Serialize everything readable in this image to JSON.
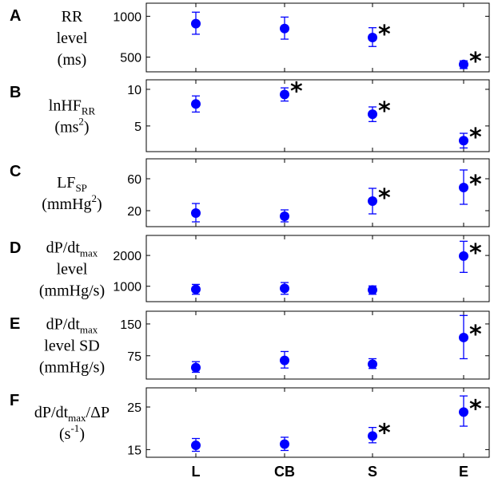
{
  "chart_data": [
    {
      "panel": "A",
      "type": "scatter",
      "ylabel_lines": [
        {
          "text": "RR",
          "sub": "",
          "sup": ""
        },
        {
          "text": "level",
          "sub": "",
          "sup": ""
        },
        {
          "text": "(ms)",
          "sub": "",
          "sup": ""
        }
      ],
      "categories": [
        "L",
        "CB",
        "S",
        "E"
      ],
      "values": [
        910,
        850,
        740,
        410
      ],
      "err_low": [
        780,
        720,
        630,
        360
      ],
      "err_high": [
        1050,
        990,
        860,
        455
      ],
      "significant": [
        false,
        false,
        true,
        true
      ],
      "ylim": [
        320,
        1160
      ],
      "yticks": [
        500,
        1000
      ],
      "ytick_labels": [
        "500",
        "1000"
      ]
    },
    {
      "panel": "B",
      "type": "scatter",
      "ylabel_lines": [
        {
          "text": "lnHF",
          "sub": "RR",
          "sup": ""
        },
        {
          "text": "(ms",
          "sub": "",
          "sup": "2",
          "after": ")"
        }
      ],
      "categories": [
        "L",
        "CB",
        "S",
        "E"
      ],
      "values": [
        8.0,
        9.3,
        6.6,
        3.0
      ],
      "err_low": [
        6.9,
        8.4,
        5.6,
        2.0
      ],
      "err_high": [
        9.1,
        10.2,
        7.6,
        4.0
      ],
      "significant": [
        false,
        true,
        true,
        true
      ],
      "ylim": [
        1.5,
        11.3
      ],
      "yticks": [
        5,
        10
      ],
      "ytick_labels": [
        "5",
        "10"
      ]
    },
    {
      "panel": "C",
      "type": "scatter",
      "ylabel_lines": [
        {
          "text": "LF",
          "sub": "SP",
          "sup": ""
        },
        {
          "text": "(mmHg",
          "sub": "",
          "sup": "2",
          "after": ")"
        }
      ],
      "categories": [
        "L",
        "CB",
        "S",
        "E"
      ],
      "values": [
        17,
        13,
        32,
        49
      ],
      "err_low": [
        6,
        6,
        16,
        28
      ],
      "err_high": [
        29,
        21,
        48,
        71
      ],
      "significant": [
        false,
        false,
        true,
        true
      ],
      "ylim": [
        0,
        85
      ],
      "yticks": [
        20,
        60
      ],
      "ytick_labels": [
        "20",
        "60"
      ]
    },
    {
      "panel": "D",
      "type": "scatter",
      "ylabel_lines": [
        {
          "text": "dP/dt",
          "sub": "max",
          "sup": ""
        },
        {
          "text": "level",
          "sub": "",
          "sup": ""
        },
        {
          "text": "(mmHg/s)",
          "sub": "",
          "sup": ""
        }
      ],
      "categories": [
        "L",
        "CB",
        "S",
        "E"
      ],
      "values": [
        900,
        930,
        880,
        1980
      ],
      "err_low": [
        740,
        740,
        740,
        1450
      ],
      "err_high": [
        1060,
        1120,
        1010,
        2460
      ],
      "significant": [
        false,
        false,
        false,
        true
      ],
      "ylim": [
        500,
        2650
      ],
      "yticks": [
        1000,
        2000
      ],
      "ytick_labels": [
        "1000",
        "2000"
      ]
    },
    {
      "panel": "E",
      "type": "scatter",
      "ylabel_lines": [
        {
          "text": "dP/dt",
          "sub": "max",
          "sup": ""
        },
        {
          "text": "level SD",
          "sub": "",
          "sup": ""
        },
        {
          "text": "(mmHg/s)",
          "sub": "",
          "sup": ""
        }
      ],
      "categories": [
        "L",
        "CB",
        "S",
        "E"
      ],
      "values": [
        47,
        64,
        55,
        118
      ],
      "err_low": [
        36,
        46,
        45,
        68
      ],
      "err_high": [
        61,
        85,
        68,
        170
      ],
      "significant": [
        false,
        false,
        false,
        true
      ],
      "ylim": [
        20,
        180
      ],
      "yticks": [
        75,
        150
      ],
      "ytick_labels": [
        "75",
        "150"
      ]
    },
    {
      "panel": "F",
      "type": "scatter",
      "ylabel_lines": [
        {
          "text": "dP/dt",
          "sub": "max",
          "sup": "",
          "after": "/ΔP"
        },
        {
          "text": "(s",
          "sub": "",
          "sup": "-1",
          "after": ")"
        }
      ],
      "categories": [
        "L",
        "CB",
        "S",
        "E"
      ],
      "values": [
        16.0,
        16.3,
        18.2,
        23.8
      ],
      "err_low": [
        14.6,
        14.8,
        16.6,
        20.5
      ],
      "err_high": [
        17.6,
        17.9,
        20.2,
        27.6
      ],
      "significant": [
        false,
        false,
        true,
        true
      ],
      "ylim": [
        13.2,
        29.5
      ],
      "yticks": [
        15,
        25
      ],
      "ytick_labels": [
        "15",
        "25"
      ]
    }
  ],
  "significance_marker": "*",
  "colors": {
    "marker": "#0000ff",
    "axes": "#000000"
  }
}
